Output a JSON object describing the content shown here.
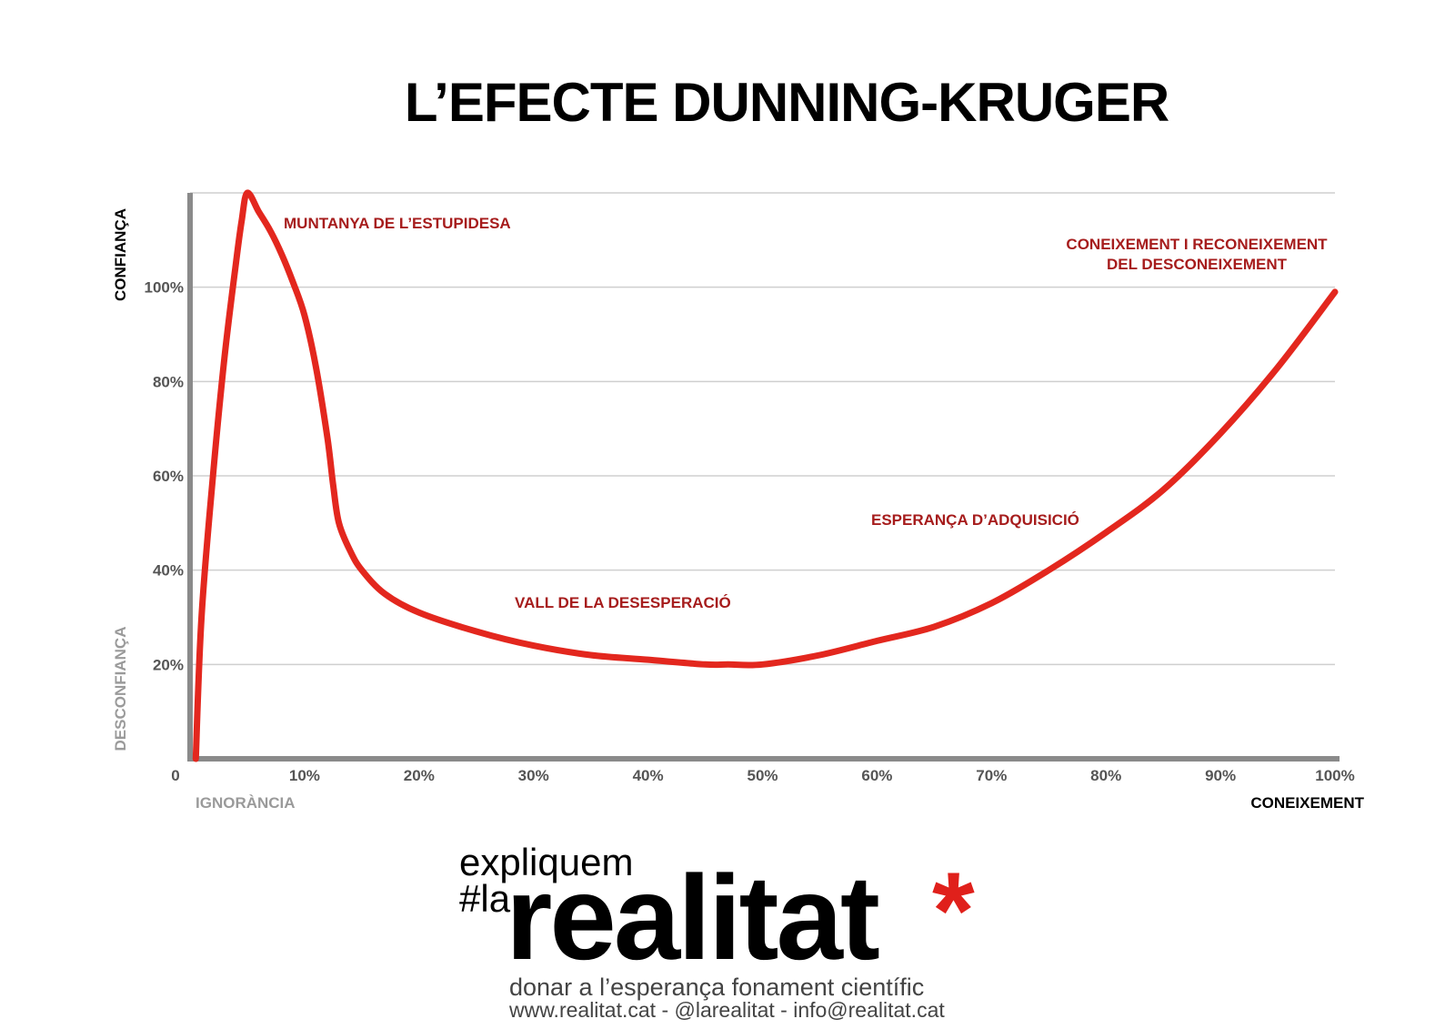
{
  "chart_data": {
    "type": "line",
    "title": "L’EFECTE DUNNING-KRUGER",
    "xlabel": "CONEIXEMENT",
    "xlabel_low": "IGNORÀNCIA",
    "ylabel": "CONFIANÇA",
    "ylabel_low": "DESCONFIANÇA",
    "xlim": [
      0,
      100
    ],
    "ylim": [
      0,
      120
    ],
    "x_ticks": [
      "0",
      "10%",
      "20%",
      "30%",
      "40%",
      "50%",
      "60%",
      "70%",
      "80%",
      "90%",
      "100%"
    ],
    "x_tick_values": [
      0,
      10,
      20,
      30,
      40,
      50,
      60,
      70,
      80,
      90,
      100
    ],
    "y_ticks": [
      "20%",
      "40%",
      "60%",
      "80%",
      "100%"
    ],
    "y_tick_values": [
      20,
      40,
      60,
      80,
      100
    ],
    "grid": true,
    "line_color": "#e3271e",
    "series": [
      {
        "x": [
          0.5,
          1,
          2,
          3,
          4,
          4.5,
          5,
          6,
          7,
          8,
          9,
          10,
          11,
          12,
          12.5,
          13,
          14,
          15,
          17,
          20,
          25,
          30,
          35,
          40,
          45,
          47,
          50,
          55,
          60,
          65,
          70,
          75,
          80,
          85,
          90,
          95,
          100
        ],
        "y": [
          0,
          30,
          60,
          85,
          105,
          114,
          120,
          116,
          112,
          107,
          101,
          94,
          83,
          68,
          58,
          50,
          44,
          40,
          35,
          31,
          27,
          24,
          22,
          21,
          20,
          20,
          20,
          22,
          25,
          28,
          33,
          40,
          48,
          57,
          69,
          83,
          99
        ]
      }
    ],
    "annotations": [
      {
        "text": "MUNTANYA DE L’ESTUPIDESA"
      },
      {
        "text": "VALL DE LA DESESPERACIÓ"
      },
      {
        "text": "ESPERANÇA D’ADQUISICIÓ"
      },
      {
        "lines": [
          "CONEIXEMENT I RECONEIXEMENT",
          "DEL DESCONEIXEMENT"
        ]
      }
    ]
  },
  "logo": {
    "line1": "expliquem",
    "prefix": "#la",
    "main": "realitat",
    "star": "*",
    "tagline": "donar a l’esperança fonament científic",
    "contact": "www.realitat.cat - @larealitat - info@realitat.cat"
  }
}
